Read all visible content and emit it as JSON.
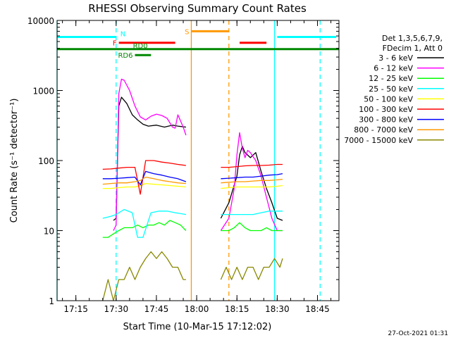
{
  "chart_data": {
    "type": "line",
    "title": "RHESSI Observing Summary Count Rates",
    "xlabel": "Start Time (10-Mar-15 17:12:02)",
    "ylabel": "Count Rate (s⁻¹ detector⁻¹)",
    "yscale": "log",
    "ylim": [
      1,
      10000
    ],
    "xlim": [
      "17:08",
      "18:53"
    ],
    "x_ticks": [
      "17:15",
      "17:30",
      "17:45",
      "18:00",
      "18:15",
      "18:30",
      "18:45"
    ],
    "y_ticks": [
      "1",
      "10",
      "100",
      "1000",
      "10000"
    ],
    "footer": "27-Oct-2021 01:31",
    "legend": {
      "placement": "right",
      "header": [
        "Det 1,3,5,6,7,9,",
        "FDecim 1, Att 0"
      ],
      "entries": [
        {
          "label": "3 - 6 keV",
          "color": "#000000"
        },
        {
          "label": "6 - 12 keV",
          "color": "#ff00ff"
        },
        {
          "label": "12 - 25 keV",
          "color": "#00ff00"
        },
        {
          "label": "25 - 50 keV",
          "color": "#00ffff"
        },
        {
          "label": "50 - 100 keV",
          "color": "#ffff00"
        },
        {
          "label": "100 - 300 keV",
          "color": "#ff0000"
        },
        {
          "label": "300 - 800 keV",
          "color": "#0000ff"
        },
        {
          "label": "800 - 7000 keV",
          "color": "#ff9900"
        },
        {
          "label": "7000 - 15000 keV",
          "color": "#888800"
        }
      ]
    },
    "series": [
      {
        "name": "3 - 6 keV",
        "color": "#000000",
        "segments": [
          {
            "x": [
              "17:29",
              "17:30",
              "17:31",
              "17:32",
              "17:34",
              "17:36",
              "17:38",
              "17:40",
              "17:42",
              "17:45",
              "17:48",
              "17:51",
              "17:53",
              "17:56"
            ],
            "y": [
              14,
              15,
              600,
              800,
              650,
              450,
              380,
              330,
              310,
              320,
              300,
              320,
              310,
              300
            ]
          },
          {
            "x": [
              "18:09",
              "18:12",
              "18:15",
              "18:16",
              "18:17",
              "18:18",
              "18:20",
              "18:22",
              "18:24",
              "18:26",
              "18:28",
              "18:30",
              "18:32"
            ],
            "y": [
              15,
              25,
              60,
              120,
              160,
              130,
              110,
              130,
              70,
              40,
              25,
              15,
              14
            ]
          }
        ]
      },
      {
        "name": "6 - 12 keV",
        "color": "#ff00ff",
        "segments": [
          {
            "x": [
              "17:29",
              "17:30",
              "17:31",
              "17:32",
              "17:33",
              "17:35",
              "17:37",
              "17:39",
              "17:41",
              "17:43",
              "17:45",
              "17:47",
              "17:49",
              "17:51",
              "17:52",
              "17:53",
              "17:55",
              "17:56"
            ],
            "y": [
              10,
              12,
              900,
              1450,
              1400,
              1000,
              600,
              420,
              380,
              430,
              460,
              440,
              400,
              300,
              290,
              450,
              300,
              230
            ]
          },
          {
            "x": [
              "18:09",
              "18:12",
              "18:14",
              "18:15",
              "18:16",
              "18:17",
              "18:18",
              "18:19",
              "18:20",
              "18:22",
              "18:24",
              "18:26",
              "18:28",
              "18:30",
              "18:32"
            ],
            "y": [
              10,
              15,
              40,
              120,
              250,
              150,
              110,
              140,
              130,
              100,
              60,
              30,
              15,
              10,
              10
            ]
          }
        ]
      },
      {
        "name": "12 - 25 keV",
        "color": "#00ff00",
        "segments": [
          {
            "x": [
              "17:25",
              "17:27",
              "17:29",
              "17:31",
              "17:33",
              "17:36",
              "17:38",
              "17:40",
              "17:42",
              "17:44",
              "17:46",
              "17:48",
              "17:50",
              "17:52",
              "17:54",
              "17:56"
            ],
            "y": [
              8,
              8,
              9,
              10,
              11,
              11,
              12,
              11,
              12,
              12,
              13,
              12,
              14,
              13,
              12,
              10
            ]
          },
          {
            "x": [
              "18:09",
              "18:12",
              "18:14",
              "18:16",
              "18:18",
              "18:20",
              "18:22",
              "18:24",
              "18:26",
              "18:28",
              "18:30",
              "18:32"
            ],
            "y": [
              10,
              10,
              11,
              13,
              11,
              10,
              10,
              10,
              11,
              10,
              10,
              10
            ]
          }
        ]
      },
      {
        "name": "25 - 50 keV",
        "color": "#00ffff",
        "segments": [
          {
            "x": [
              "17:25",
              "17:28",
              "17:30",
              "17:33",
              "17:36",
              "17:38",
              "17:40",
              "17:43",
              "17:46",
              "17:49",
              "17:52",
              "17:56"
            ],
            "y": [
              15,
              16,
              17,
              20,
              18,
              8,
              8,
              18,
              19,
              19,
              18,
              17
            ]
          },
          {
            "x": [
              "18:09",
              "18:12",
              "18:15",
              "18:18",
              "18:21",
              "18:24",
              "18:27",
              "18:30",
              "18:32"
            ],
            "y": [
              17,
              17,
              17,
              17,
              17,
              18,
              19,
              19,
              19
            ]
          }
        ]
      },
      {
        "name": "50 - 100 keV",
        "color": "#ffff00",
        "segments": [
          {
            "x": [
              "17:25",
              "17:28",
              "17:31",
              "17:34",
              "17:37",
              "17:39",
              "17:41",
              "17:44",
              "17:47",
              "17:50",
              "17:53",
              "17:56"
            ],
            "y": [
              40,
              40,
              41,
              42,
              42,
              44,
              47,
              46,
              45,
              44,
              43,
              42
            ]
          },
          {
            "x": [
              "18:09",
              "18:12",
              "18:15",
              "18:18",
              "18:21",
              "18:24",
              "18:27",
              "18:30",
              "18:32"
            ],
            "y": [
              40,
              41,
              42,
              42,
              42,
              42,
              42,
              43,
              44
            ]
          }
        ]
      },
      {
        "name": "100 - 300 keV",
        "color": "#ff0000",
        "segments": [
          {
            "x": [
              "17:25",
              "17:28",
              "17:31",
              "17:34",
              "17:37",
              "17:39",
              "17:41",
              "17:44",
              "17:47",
              "17:50",
              "17:53",
              "17:56"
            ],
            "y": [
              75,
              76,
              78,
              80,
              80,
              33,
              100,
              100,
              95,
              92,
              88,
              85
            ]
          },
          {
            "x": [
              "18:09",
              "18:12",
              "18:15",
              "18:18",
              "18:21",
              "18:24",
              "18:27",
              "18:30",
              "18:32"
            ],
            "y": [
              80,
              80,
              82,
              84,
              85,
              85,
              86,
              88,
              88
            ]
          }
        ]
      },
      {
        "name": "300 - 800 keV",
        "color": "#0000ff",
        "segments": [
          {
            "x": [
              "17:25",
              "17:28",
              "17:31",
              "17:34",
              "17:37",
              "17:39",
              "17:41",
              "17:44",
              "17:47",
              "17:50",
              "17:53",
              "17:56"
            ],
            "y": [
              55,
              55,
              56,
              57,
              58,
              45,
              70,
              65,
              62,
              58,
              55,
              50
            ]
          },
          {
            "x": [
              "18:09",
              "18:12",
              "18:15",
              "18:18",
              "18:21",
              "18:24",
              "18:27",
              "18:30",
              "18:32"
            ],
            "y": [
              55,
              56,
              57,
              58,
              58,
              60,
              62,
              63,
              65
            ]
          }
        ]
      },
      {
        "name": "800 - 7000 keV",
        "color": "#ff9900",
        "segments": [
          {
            "x": [
              "17:25",
              "17:28",
              "17:31",
              "17:34",
              "17:37",
              "17:39",
              "17:41",
              "17:44",
              "17:47",
              "17:50",
              "17:53",
              "17:56"
            ],
            "y": [
              46,
              47,
              48,
              48,
              50,
              52,
              58,
              55,
              52,
              50,
              48,
              47
            ]
          },
          {
            "x": [
              "18:09",
              "18:12",
              "18:15",
              "18:18",
              "18:21",
              "18:24",
              "18:27",
              "18:30",
              "18:32"
            ],
            "y": [
              48,
              49,
              50,
              50,
              51,
              52,
              52,
              53,
              54
            ]
          }
        ]
      },
      {
        "name": "7000 - 15000 keV",
        "color": "#888800",
        "segments": [
          {
            "x": [
              "17:25",
              "17:27",
              "17:29",
              "17:31",
              "17:33",
              "17:35",
              "17:37",
              "17:39",
              "17:41",
              "17:43",
              "17:45",
              "17:47",
              "17:49",
              "17:51",
              "17:53",
              "17:55",
              "17:56"
            ],
            "y": [
              1,
              2,
              1,
              2,
              2,
              3,
              2,
              3,
              4,
              5,
              4,
              5,
              4,
              3,
              3,
              2,
              2
            ]
          },
          {
            "x": [
              "18:09",
              "18:11",
              "18:13",
              "18:15",
              "18:17",
              "18:19",
              "18:21",
              "18:23",
              "18:25",
              "18:27",
              "18:29",
              "18:31",
              "18:32"
            ],
            "y": [
              2,
              3,
              2,
              3,
              2,
              3,
              3,
              2,
              3,
              3,
              4,
              3,
              4
            ]
          }
        ]
      }
    ],
    "flag_bars": [
      {
        "label": "N",
        "color": "#00ffff",
        "y": 5800,
        "intervals": [
          [
            "17:08",
            "17:30"
          ],
          [
            "18:30",
            "18:52"
          ]
        ]
      },
      {
        "label": "F",
        "color": "#ff0000",
        "y": 4800,
        "intervals": [
          [
            "17:31",
            "17:52"
          ],
          [
            "18:16",
            "18:26"
          ]
        ]
      },
      {
        "label": "S",
        "color": "#ff9900",
        "y": 7000,
        "intervals": [
          [
            "17:58",
            "18:12"
          ]
        ]
      },
      {
        "label": "RD0",
        "color": "#008800",
        "y": 3900,
        "intervals": [
          [
            "17:08",
            "18:53"
          ]
        ]
      },
      {
        "label": "RD6",
        "color": "#008800",
        "y": 3200,
        "intervals": [
          [
            "17:37",
            "17:43"
          ]
        ]
      }
    ],
    "vertical_lines": [
      {
        "x": "17:08",
        "color": "#00ffff",
        "style": "solid"
      },
      {
        "x": "17:30",
        "color": "#00ffff",
        "style": "dashed"
      },
      {
        "x": "17:58",
        "color": "#ff9900",
        "style": "solid"
      },
      {
        "x": "18:12",
        "color": "#ff9900",
        "style": "dashed"
      },
      {
        "x": "18:29",
        "color": "#00ffff",
        "style": "solid"
      },
      {
        "x": "18:46",
        "color": "#00ffff",
        "style": "dashed"
      }
    ]
  }
}
